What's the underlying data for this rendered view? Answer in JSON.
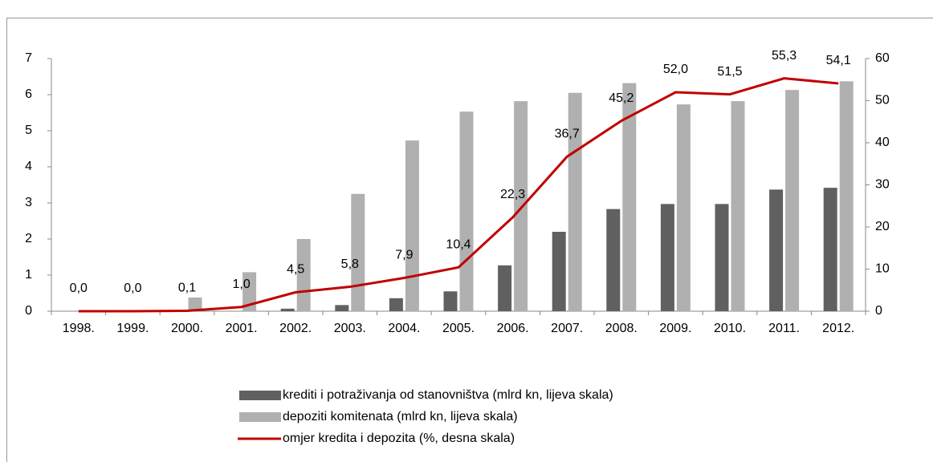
{
  "chart_data": {
    "type": "bar-line",
    "categories": [
      "1998.",
      "1999.",
      "2000.",
      "2001.",
      "2002.",
      "2003.",
      "2004.",
      "2005.",
      "2006.",
      "2007.",
      "2008.",
      "2009.",
      "2010.",
      "2011.",
      "2012."
    ],
    "series": [
      {
        "name": "krediti i potraživanja od stanovništva (mlrd kn, lijeva skala)",
        "color": "#606060",
        "type": "bar",
        "values": [
          0,
          0,
          0,
          0,
          0.07,
          0.17,
          0.36,
          0.55,
          1.27,
          2.2,
          2.83,
          2.97,
          2.97,
          3.37,
          3.42
        ]
      },
      {
        "name": "depoziti komitenata (mlrd kn, lijeva skala)",
        "color": "#b0b0b0",
        "type": "bar",
        "values": [
          0,
          0,
          0.38,
          1.08,
          2.0,
          3.25,
          4.73,
          5.53,
          5.82,
          6.05,
          6.32,
          5.73,
          5.82,
          6.13,
          6.37
        ]
      },
      {
        "name": "omjer kredita i depozita (%, desna skala)",
        "color": "#c00000",
        "type": "line",
        "axis": "y2",
        "values": [
          0,
          0,
          0.1,
          1.0,
          4.5,
          5.8,
          7.9,
          10.4,
          22.3,
          36.7,
          45.2,
          52.0,
          51.5,
          55.3,
          54.1
        ],
        "value_labels": [
          "0,0",
          "0,0",
          "0,1",
          "1,0",
          "4,5",
          "5,8",
          "7,9",
          "10,4",
          "22,3",
          "36,7",
          "45,2",
          "52,0",
          "51,5",
          "55,3",
          "54,1"
        ]
      }
    ],
    "ylim": [
      0,
      7
    ],
    "yticks": [
      0,
      1,
      2,
      3,
      4,
      5,
      6,
      7
    ],
    "y2lim": [
      0,
      60
    ],
    "y2ticks": [
      0,
      10,
      20,
      30,
      40,
      50,
      60
    ],
    "grid": false,
    "legend": "bottom"
  }
}
